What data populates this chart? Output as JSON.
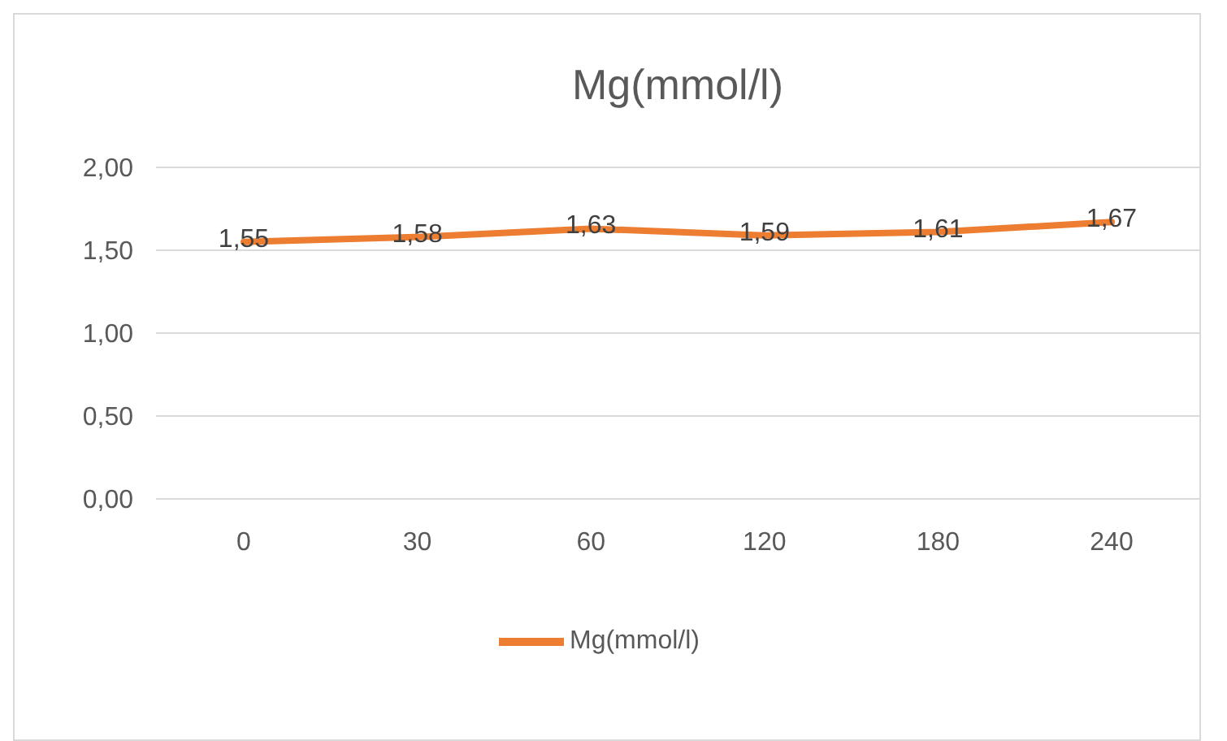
{
  "chart_data": {
    "type": "line",
    "title": "Mg(mmol/l)",
    "categories": [
      "0",
      "30",
      "60",
      "120",
      "180",
      "240"
    ],
    "series": [
      {
        "name": "Mg(mmol/l)",
        "color": "#ed7d31",
        "values": [
          1.55,
          1.58,
          1.63,
          1.59,
          1.61,
          1.67
        ],
        "value_labels": [
          "1,55",
          "1,58",
          "1,63",
          "1,59",
          "1,61",
          "1,67"
        ]
      }
    ],
    "ylim": [
      0,
      2
    ],
    "yticks": [
      {
        "value": 0,
        "label": "0,00"
      },
      {
        "value": 0.5,
        "label": "0,50"
      },
      {
        "value": 1,
        "label": "1,00"
      },
      {
        "value": 1.5,
        "label": "1,50"
      },
      {
        "value": 2,
        "label": "2,00"
      }
    ],
    "grid": "y",
    "legend": "bottom",
    "marker": "none",
    "line_style": "solid"
  }
}
